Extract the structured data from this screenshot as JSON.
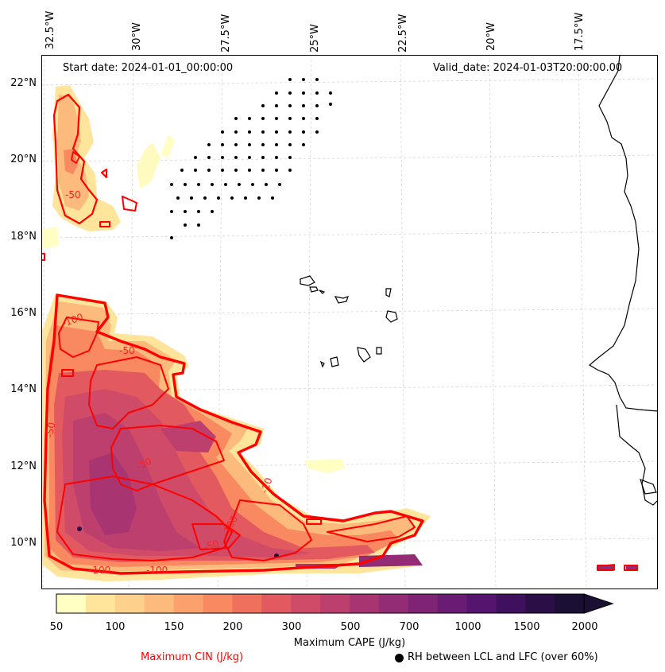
{
  "header": {
    "start_date": "Start date: 2024-01-01_00:00:00",
    "valid_date": "Valid_date: 2024-01-03T20:00:00.00"
  },
  "axes": {
    "lon_labels": [
      "32.5°W",
      "30°W",
      "27.5°W",
      "25°W",
      "22.5°W",
      "20°W",
      "17.5°W"
    ],
    "lat_labels": [
      "22°N",
      "20°N",
      "18°N",
      "16°N",
      "14°N",
      "12°N",
      "10°N"
    ]
  },
  "contour_labels": [
    "-50",
    "-100",
    "-50",
    "-50",
    "-100",
    "-100",
    "-100",
    "-10",
    "-50",
    "-50"
  ],
  "colorbar": {
    "title": "Maximum CAPE (J/kg)",
    "ticks": [
      "50",
      "100",
      "150",
      "200",
      "300",
      "500",
      "700",
      "1000",
      "1500",
      "2000"
    ],
    "colors": [
      "#ffffc4",
      "#fee59b",
      "#fdd08c",
      "#fcba7c",
      "#fba16d",
      "#f98960",
      "#ef705c",
      "#e25a5f",
      "#d04b67",
      "#bc3f6d",
      "#a83571",
      "#932c74",
      "#7f2474",
      "#6a1c74",
      "#55156e",
      "#3f105e",
      "#2b0e46",
      "#1c0f34"
    ]
  },
  "legend": {
    "cin_label": "Maximum CIN (J/kg)",
    "cin_color": "#ff0000",
    "rh_label": "RH between LCL and LFC (over 60%)"
  }
}
